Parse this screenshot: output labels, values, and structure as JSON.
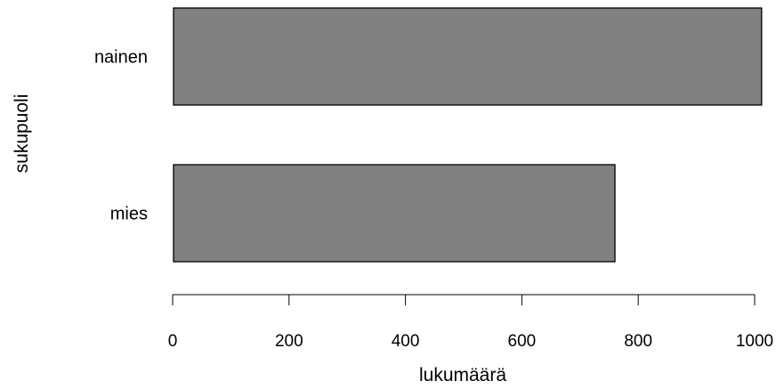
{
  "chart_data": {
    "type": "bar",
    "orientation": "horizontal",
    "categories": [
      "nainen",
      "mies"
    ],
    "values": [
      1012,
      760
    ],
    "xlabel": "lukumäärä",
    "ylabel": "sukupuoli",
    "xlim": [
      0,
      1000
    ],
    "xticks": [
      0,
      200,
      400,
      600,
      800,
      1000
    ],
    "grid": false,
    "legend": "none",
    "bar_color": "#808080",
    "bar_border_color": "#000000"
  }
}
